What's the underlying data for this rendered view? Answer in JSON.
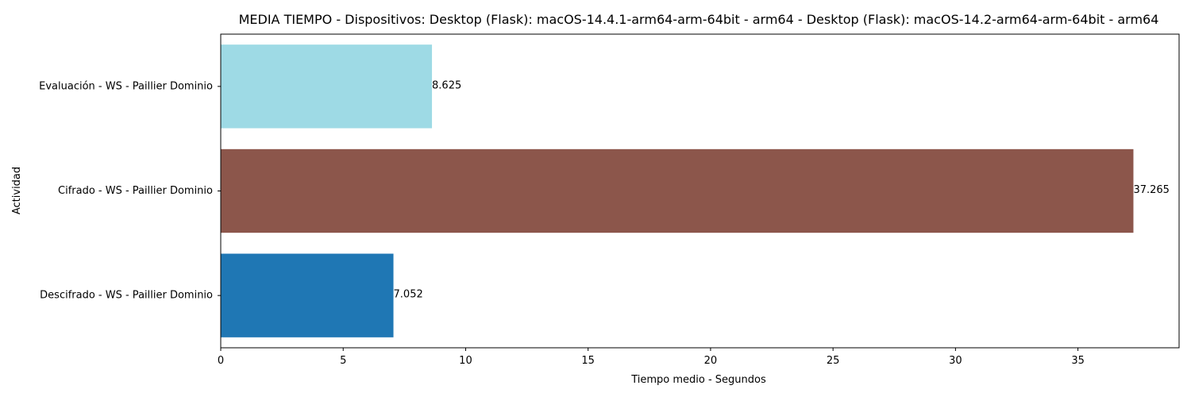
{
  "chart_data": {
    "type": "bar",
    "orientation": "horizontal",
    "title": "MEDIA TIEMPO - Dispositivos: Desktop (Flask): macOS-14.4.1-arm64-arm-64bit - arm64 - Desktop (Flask): macOS-14.2-arm64-arm-64bit - arm64",
    "xlabel": "Tiempo medio - Segundos",
    "ylabel": "Actividad",
    "categories": [
      "Descifrado - WS - Paillier Dominio",
      "Cifrado - WS - Paillier Dominio",
      "Evaluación - WS - Paillier Dominio"
    ],
    "values": [
      7.052,
      37.265,
      8.625
    ],
    "value_labels": [
      "7.052",
      "37.265",
      "8.625"
    ],
    "colors": [
      "#1f77b4",
      "#8c564b",
      "#9edae5"
    ],
    "xlim": [
      0,
      39.13
    ],
    "xticks": [
      0,
      5,
      10,
      15,
      20,
      25,
      30,
      35
    ],
    "xtick_labels": [
      "0",
      "5",
      "10",
      "15",
      "20",
      "25",
      "30",
      "35"
    ],
    "grid": false,
    "legend": "none"
  }
}
